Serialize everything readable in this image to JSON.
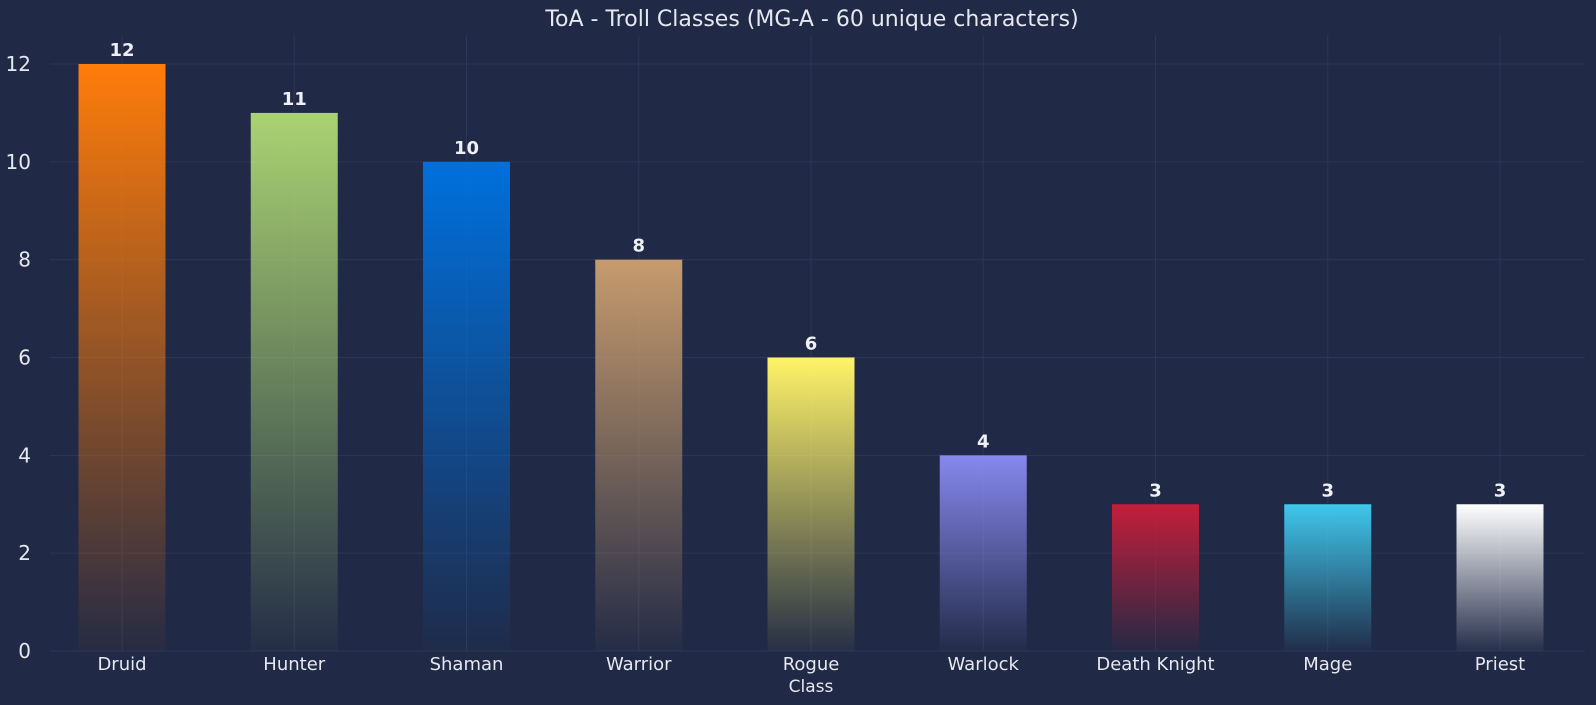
{
  "chart_data": {
    "type": "bar",
    "title": "ToA - Troll Classes (MG-A - 60 unique characters)",
    "xlabel": "Class",
    "ylabel": "",
    "categories": [
      "Druid",
      "Hunter",
      "Shaman",
      "Warrior",
      "Rogue",
      "Warlock",
      "Death Knight",
      "Mage",
      "Priest"
    ],
    "values": [
      12,
      11,
      10,
      8,
      6,
      4,
      3,
      3,
      3
    ],
    "bar_colors": [
      "#ff7c0a",
      "#aad372",
      "#0070dd",
      "#c69b6d",
      "#fff468",
      "#8788ee",
      "#c41e3a",
      "#3fc7eb",
      "#ffffff"
    ],
    "ylim": [
      0,
      12.6
    ],
    "yticks": [
      0,
      2,
      4,
      6,
      8,
      10,
      12
    ],
    "grid": true,
    "background": "#202945"
  }
}
